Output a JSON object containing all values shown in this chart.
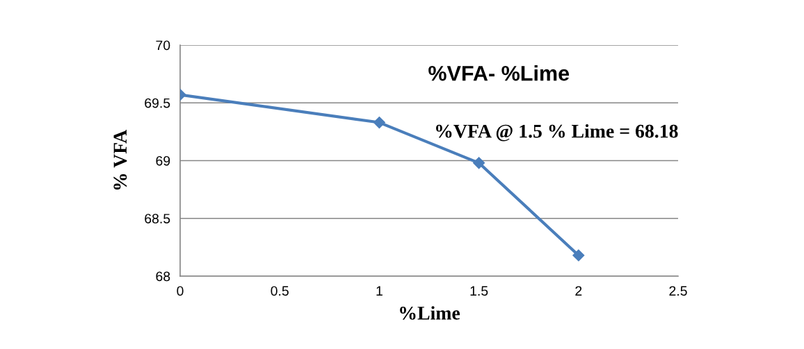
{
  "chart_data": {
    "type": "line",
    "title": "%VFA- %Lime",
    "xlabel": "%Lime",
    "ylabel": "% VFA",
    "annotations": [
      "%VFA @ 1.5 % Lime = 68.18"
    ],
    "x": [
      0,
      1,
      1.5,
      2
    ],
    "series": [
      {
        "color": "#4a7ebb",
        "values": [
          69.57,
          69.33,
          68.98,
          68.18
        ]
      }
    ],
    "xlim": [
      0,
      2.5
    ],
    "xticks": [
      0,
      0.5,
      1,
      1.5,
      2,
      2.5
    ],
    "ylim": [
      68,
      70
    ],
    "yticks": [
      68,
      68.5,
      69,
      69.5,
      70
    ],
    "grid": "y",
    "legend": false,
    "marker": "diamond",
    "line_style": "solid"
  }
}
